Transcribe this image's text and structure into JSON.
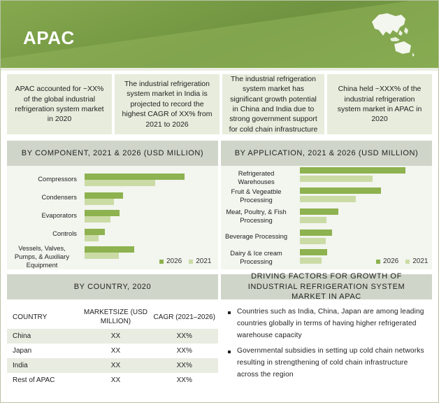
{
  "header": {
    "title": "APAC"
  },
  "stats": [
    "APAC accounted for ~XX% of the global industrial refrigeration system market in 2020",
    "The industrial refrigeration system market in India is projected to record the highest CAGR of XX% from 2021 to 2026",
    "The industrial refrigeration system market has significant growth potential in China and India due to strong government support for cold chain infrastructure",
    "China held ~XXX% of the industrial refrigeration system market in APAC in 2020"
  ],
  "component_chart": {
    "title": "BY COMPONENT, 2021 & 2026 (USD MILLION)",
    "chart_data": {
      "type": "bar",
      "orientation": "horizontal",
      "categories": [
        "Compressors",
        "Condensers",
        "Evaporators",
        "Controls",
        "Vessels, Valves, Pumps, & Auxiliary Equipment"
      ],
      "series": [
        {
          "name": "2026",
          "values": [
            143,
            55,
            50,
            29,
            71
          ]
        },
        {
          "name": "2021",
          "values": [
            101,
            42,
            37,
            20,
            49
          ]
        }
      ],
      "legend": [
        "2026",
        "2021"
      ]
    }
  },
  "application_chart": {
    "title": "BY APPLICATION, 2021 & 2026 (USD MILLION)",
    "chart_data": {
      "type": "bar",
      "orientation": "horizontal",
      "categories": [
        "Refrigerated Warehouses",
        "Fruit & Vegeatble Processing",
        "Meat, Poultry, & Fish Processing",
        "Beverage Processing",
        "Dairy & Ice cream Processing"
      ],
      "series": [
        {
          "name": "2026",
          "values": [
            151,
            116,
            55,
            46,
            39
          ]
        },
        {
          "name": "2021",
          "values": [
            104,
            80,
            38,
            37,
            31
          ]
        }
      ],
      "legend": [
        "2026",
        "2021"
      ]
    }
  },
  "country": {
    "title": "BY COUNTRY, 2020",
    "columns": [
      "COUNTRY",
      "MARKETSIZE (USD MILLION)",
      "CAGR (2021–2026)"
    ],
    "rows": [
      [
        "China",
        "XX",
        "XX%"
      ],
      [
        "Japan",
        "XX",
        "XX%"
      ],
      [
        "India",
        "XX",
        "XX%"
      ],
      [
        "Rest of APAC",
        "XX",
        "XX%"
      ]
    ]
  },
  "drivers": {
    "title": "DRIVING FACTORS FOR GROWTH OF INDUSTRIAL REFRIGERATION SYSTEM MARKET IN APAC",
    "items": [
      "Countries such as India, China, Japan are among leading countries globally in terms of having higher refrigerated warehouse capacity",
      "Governmental subsidies in setting up cold chain networks resulting in strengthening of cold chain infrastructure across the region"
    ]
  },
  "colors": {
    "banner": "#7a9e45",
    "bar2026": "#8db24f",
    "bar2021": "#cbdba5",
    "section_header": "#cfd5c8",
    "panel": "#f3f5ef"
  }
}
